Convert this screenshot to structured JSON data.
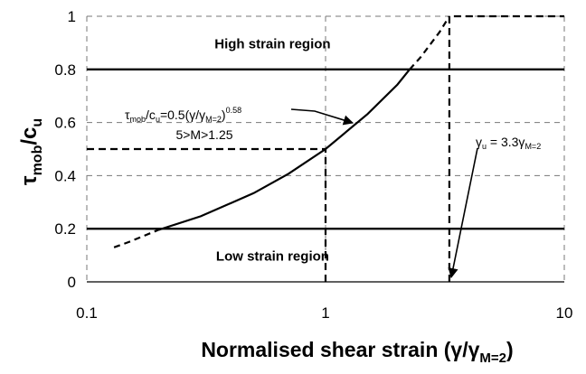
{
  "chart_data": {
    "type": "line",
    "xscale": "log",
    "xlim": [
      0.1,
      10
    ],
    "ylim": [
      0,
      1
    ],
    "xticks": [
      0.1,
      1,
      10
    ],
    "xtick_labels": [
      "0.1",
      "1",
      "10"
    ],
    "yticks": [
      0,
      0.2,
      0.4,
      0.6,
      0.8,
      1
    ],
    "ytick_labels": [
      "0",
      "0.2",
      "0.4",
      "0.6",
      "0.8",
      "1"
    ],
    "xlabel": {
      "main": "Normalised shear strain (γ/γ",
      "sub": "M=2",
      "close": ")"
    },
    "ylabel": {
      "base1": "τ",
      "sub1": "mob",
      "slash": "/c",
      "sub2": "u"
    },
    "grid": "dashed",
    "series": [
      {
        "style": "dashed",
        "x": [
          0.13,
          0.15,
          0.17,
          0.2
        ],
        "y": [
          0.13,
          0.15,
          0.17,
          0.196
        ]
      },
      {
        "style": "solid",
        "x": [
          0.2,
          0.3,
          0.5,
          0.7,
          1.0,
          1.5,
          2.0,
          2.25
        ],
        "y": [
          0.196,
          0.247,
          0.334,
          0.407,
          0.5,
          0.632,
          0.743,
          0.8
        ]
      },
      {
        "style": "dashed",
        "x": [
          2.25,
          2.5,
          3.0,
          3.3
        ],
        "y": [
          0.8,
          0.846,
          0.94,
          1.0
        ]
      }
    ],
    "regions": [
      {
        "label": "High strain region",
        "y": 0.8,
        "x": 0.6
      },
      {
        "label": "Low strain region",
        "y": 0.2,
        "x": 0.6
      }
    ],
    "reference_lines": [
      {
        "type": "dashed",
        "points": [
          [
            0.1,
            0.5
          ],
          [
            1,
            0.5
          ],
          [
            1,
            0
          ]
        ]
      },
      {
        "type": "dashed",
        "points": [
          [
            3.3,
            0
          ],
          [
            3.3,
            1
          ],
          [
            10,
            1
          ]
        ]
      }
    ],
    "annotations": [
      {
        "id": "eq",
        "parts": [
          "τ",
          "mob",
          "/c",
          "u",
          "=0.5(γ/γ",
          "M=2",
          ")",
          "0.58"
        ],
        "line2": "5>M>1.25"
      },
      {
        "id": "gamma_u",
        "parts": [
          "γ",
          "u",
          " = 3.3γ",
          "M=2"
        ]
      }
    ]
  }
}
